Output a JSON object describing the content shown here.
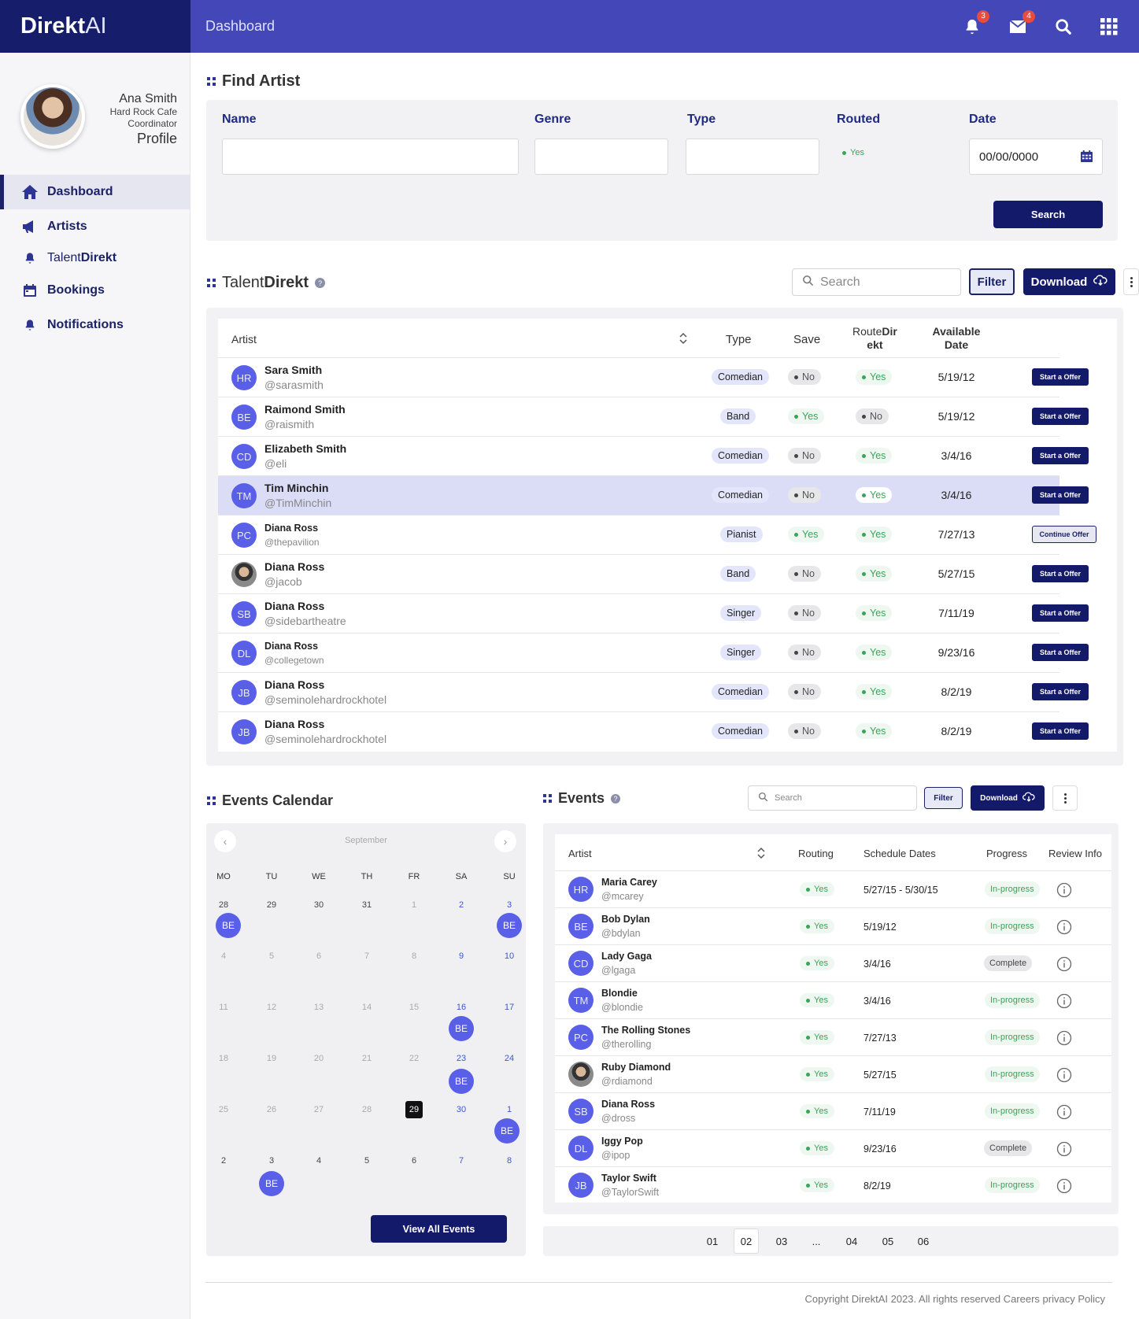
{
  "brand": {
    "bold": "Direkt",
    "light": "AI"
  },
  "header": {
    "title": "Dashboard",
    "notif_count": "3",
    "mail_count": "4"
  },
  "profile": {
    "name": "Ana Smith",
    "company": "Hard Rock Cafe",
    "role": "Coordinator",
    "link": "Profile"
  },
  "nav": [
    {
      "label": "Dashboard",
      "icon": "home-icon"
    },
    {
      "label": "Artists",
      "icon": "megaphone-icon"
    },
    {
      "label_light": "Talent",
      "label_bold": "Direkt",
      "icon": "bell-icon"
    },
    {
      "label": "Bookings",
      "icon": "calendar-icon"
    },
    {
      "label": "Notifications",
      "icon": "bell-icon"
    }
  ],
  "find_artist": {
    "title": "Find Artist",
    "labels": {
      "name": "Name",
      "genre": "Genre",
      "type": "Type",
      "routed": "Routed",
      "date": "Date"
    },
    "routed_value": "Yes",
    "date_value": "00/00/0000",
    "search_button": "Search"
  },
  "talent": {
    "title_light": "Talent",
    "title_bold": "Direkt",
    "search_placeholder": "Search",
    "filter": "Filter",
    "download": "Download",
    "headers": {
      "artist": "Artist",
      "type": "Type",
      "save": "Save",
      "route1": "Route",
      "route2": "Dir",
      "route3": "ekt",
      "avail1": "Available",
      "avail2": "Date"
    },
    "rows": [
      {
        "initials": "HR",
        "name": "Sara Smith",
        "handle": "@sarasmith",
        "type": "Comedian",
        "save": "No",
        "routed": "Yes",
        "date": "5/19/12",
        "action": "Start a Offer"
      },
      {
        "initials": "BE",
        "name": "Raimond Smith",
        "handle": "@raismith",
        "type": "Band",
        "save": "Yes",
        "routed": "No",
        "date": "5/19/12",
        "action": "Start a Offer"
      },
      {
        "initials": "CD",
        "name": "Elizabeth Smith",
        "handle": "@eli",
        "type": "Comedian",
        "save": "No",
        "routed": "Yes",
        "date": "3/4/16",
        "action": "Start a Offer"
      },
      {
        "initials": "TM",
        "name": "Tim Minchin",
        "handle": "@TimMinchin",
        "type": "Comedian",
        "save": "No",
        "routed": "Yes",
        "date": "3/4/16",
        "action": "Start a Offer"
      },
      {
        "initials": "PC",
        "name": "Diana Ross",
        "handle": "@thepavilion",
        "type": "Pianist",
        "save": "Yes",
        "routed": "Yes",
        "date": "7/27/13",
        "action": "Continue Offer"
      },
      {
        "initials": "",
        "name": "Diana Ross",
        "handle": "@jacob",
        "type": "Band",
        "save": "No",
        "routed": "Yes",
        "date": "5/27/15",
        "action": "Start a Offer"
      },
      {
        "initials": "SB",
        "name": "Diana Ross",
        "handle": "@sidebartheatre",
        "type": "Singer",
        "save": "No",
        "routed": "Yes",
        "date": "7/11/19",
        "action": "Start a Offer"
      },
      {
        "initials": "DL",
        "name": "Diana Ross",
        "handle": "@collegetown",
        "type": "Singer",
        "save": "No",
        "routed": "Yes",
        "date": "9/23/16",
        "action": "Start a Offer"
      },
      {
        "initials": "JB",
        "name": "Diana Ross",
        "handle": "@seminolehardrockhotel",
        "type": "Comedian",
        "save": "No",
        "routed": "Yes",
        "date": "8/2/19",
        "action": "Start a Offer"
      },
      {
        "initials": "JB",
        "name": "Diana Ross",
        "handle": "@seminolehardrockhotel",
        "type": "Comedian",
        "save": "No",
        "routed": "Yes",
        "date": "8/2/19",
        "action": "Start a Offer"
      }
    ]
  },
  "calendar": {
    "title": "Events Calendar",
    "month": "September",
    "dow": [
      "MO",
      "TU",
      "WE",
      "TH",
      "FR",
      "SA",
      "SU"
    ],
    "weeks": [
      [
        "28",
        "29",
        "30",
        "31",
        "1",
        "2",
        "3"
      ],
      [
        "4",
        "5",
        "6",
        "7",
        "8",
        "9",
        "10"
      ],
      [
        "11",
        "12",
        "13",
        "14",
        "15",
        "16",
        "17"
      ],
      [
        "18",
        "19",
        "20",
        "21",
        "22",
        "23",
        "24"
      ],
      [
        "25",
        "26",
        "27",
        "28",
        "29",
        "30",
        "1"
      ],
      [
        "2",
        "3",
        "4",
        "5",
        "6",
        "7",
        "8"
      ]
    ],
    "event_label": "BE",
    "view_all": "View All Events"
  },
  "events": {
    "title": "Events",
    "search_placeholder": "Search",
    "filter": "Filter",
    "download": "Download",
    "headers": {
      "artist": "Artist",
      "routing": "Routing",
      "dates": "Schedule Dates",
      "progress": "Progress",
      "review": "Review Info"
    },
    "rows": [
      {
        "initials": "HR",
        "name": "Maria Carey",
        "handle": "@mcarey",
        "routing": "Yes",
        "dates": "5/27/15 - 5/30/15",
        "progress": "In-progress"
      },
      {
        "initials": "BE",
        "name": "Bob Dylan",
        "handle": "@bdylan",
        "routing": "Yes",
        "dates": "5/19/12",
        "progress": "In-progress"
      },
      {
        "initials": "CD",
        "name": "Lady Gaga",
        "handle": "@lgaga",
        "routing": "Yes",
        "dates": "3/4/16",
        "progress": "Complete"
      },
      {
        "initials": "TM",
        "name": "Blondie",
        "handle": "@blondie",
        "routing": "Yes",
        "dates": "3/4/16",
        "progress": "In-progress"
      },
      {
        "initials": "PC",
        "name": "The Rolling Stones",
        "handle": "@therolling",
        "routing": "Yes",
        "dates": "7/27/13",
        "progress": "In-progress"
      },
      {
        "initials": "",
        "name": "Ruby Diamond",
        "handle": "@rdiamond",
        "routing": "Yes",
        "dates": "5/27/15",
        "progress": "In-progress"
      },
      {
        "initials": "SB",
        "name": "Diana Ross",
        "handle": "@dross",
        "routing": "Yes",
        "dates": "7/11/19",
        "progress": "In-progress"
      },
      {
        "initials": "DL",
        "name": "Iggy Pop",
        "handle": "@ipop",
        "routing": "Yes",
        "dates": "9/23/16",
        "progress": "Complete"
      },
      {
        "initials": "JB",
        "name": "Taylor Swift",
        "handle": "@TaylorSwift",
        "routing": "Yes",
        "dates": "8/2/19",
        "progress": "In-progress"
      }
    ],
    "pages": [
      "01",
      "02",
      "03",
      "...",
      "04",
      "05",
      "06"
    ]
  },
  "footer": {
    "text": "Copyright DirektAI 2023. All rights reserved Careers privacy Policy"
  }
}
